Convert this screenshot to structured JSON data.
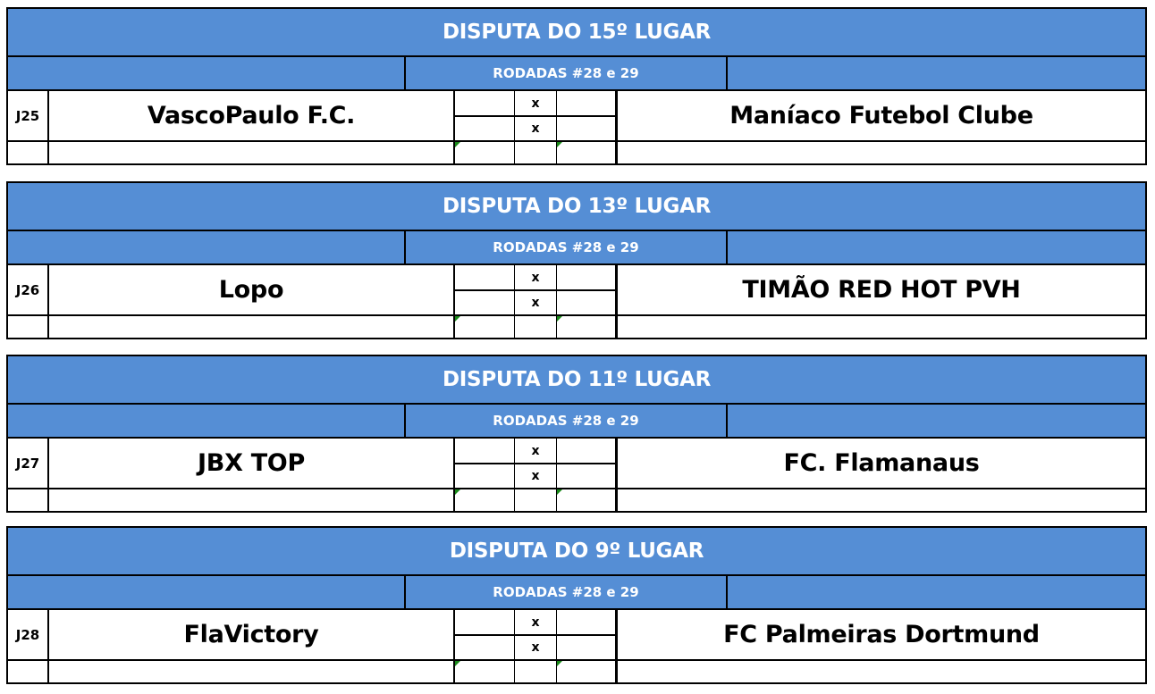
{
  "accent_color": "#558ED5",
  "matches": [
    {
      "title": "DISPUTA DO 15º LUGAR",
      "rounds": "RODADAS #28 e 29",
      "game": "J25",
      "home": "VascoPaulo F.C.",
      "away": "Maníaco Futebol Clube",
      "versus": "x"
    },
    {
      "title": "DISPUTA DO 13º LUGAR",
      "rounds": "RODADAS #28 e 29",
      "game": "J26",
      "home": "Lopo",
      "away": "TIMÃO RED HOT PVH",
      "versus": "x"
    },
    {
      "title": "DISPUTA DO 11º LUGAR",
      "rounds": "RODADAS #28 e 29",
      "game": "J27",
      "home": "JBX TOP",
      "away": "FC. Flamanaus",
      "versus": "x"
    },
    {
      "title": "DISPUTA DO 9º LUGAR",
      "rounds": "RODADAS #28 e 29",
      "game": "J28",
      "home": "FlaVictory",
      "away": "FC Palmeiras Dortmund",
      "versus": "x"
    }
  ]
}
